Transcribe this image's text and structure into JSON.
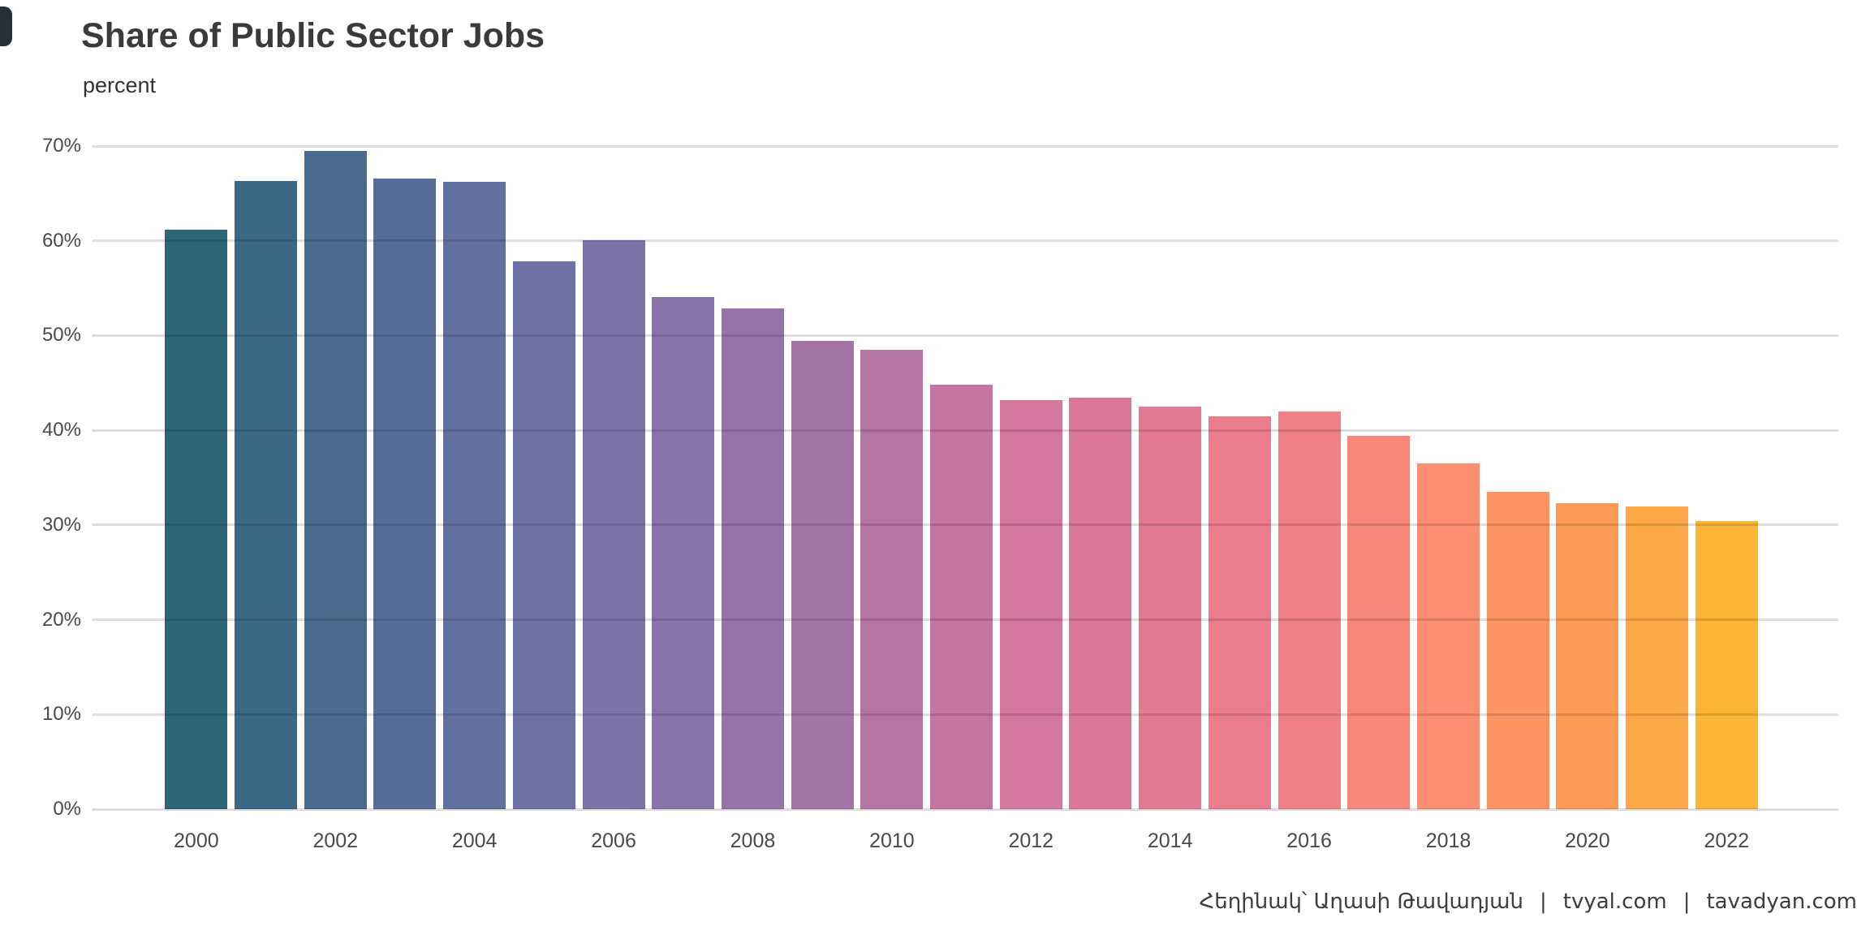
{
  "page": {
    "title": "Share of Public Sector Jobs",
    "subtitle": "percent"
  },
  "footer": {
    "author": "Հեղինակ՝ Աղասի Թավադյան",
    "separator": "|",
    "site1": "tvyal.com",
    "site2": "tavadyan.com"
  },
  "chart_data": {
    "type": "bar",
    "title": "Share of Public Sector Jobs",
    "ylabel": "percent",
    "xlabel": "",
    "categories": [
      2000,
      2001,
      2002,
      2003,
      2004,
      2005,
      2006,
      2007,
      2008,
      2009,
      2010,
      2011,
      2012,
      2013,
      2014,
      2015,
      2016,
      2017,
      2018,
      2019,
      2020,
      2021,
      2022
    ],
    "values": [
      61.2,
      66.3,
      69.5,
      66.6,
      66.2,
      57.8,
      60.1,
      54.1,
      52.9,
      49.4,
      48.5,
      44.8,
      43.2,
      43.4,
      42.5,
      41.5,
      42.0,
      39.4,
      36.5,
      33.5,
      32.3,
      32.0,
      30.4
    ],
    "bar_colors": [
      "#2f657a",
      "#3b6884",
      "#486b8e",
      "#556d97",
      "#62709f",
      "#6f72a5",
      "#7c73a8",
      "#8973aa",
      "#9674a9",
      "#a574a7",
      "#b475a4",
      "#c475a1",
      "#d4769d",
      "#dc7897",
      "#e37a91",
      "#ea7c8b",
      "#f08084",
      "#f7867b",
      "#fd8e72",
      "#fd9462",
      "#fd9b55",
      "#fda747",
      "#fcb535"
    ],
    "ylim": [
      0,
      70
    ],
    "ytick_step": 10,
    "ytick_labels": [
      "0%",
      "10%",
      "20%",
      "30%",
      "40%",
      "50%",
      "60%",
      "70%"
    ],
    "xtick_labels_visible": [
      "2000",
      "2002",
      "2004",
      "2006",
      "2008",
      "2010",
      "2012",
      "2014",
      "2016",
      "2018",
      "2020",
      "2022"
    ],
    "grid": "horizontal",
    "legend": "none",
    "gridline_color": "#dcdcdc",
    "background_color": "#ffffff",
    "text_color": "#3a3a3a"
  }
}
